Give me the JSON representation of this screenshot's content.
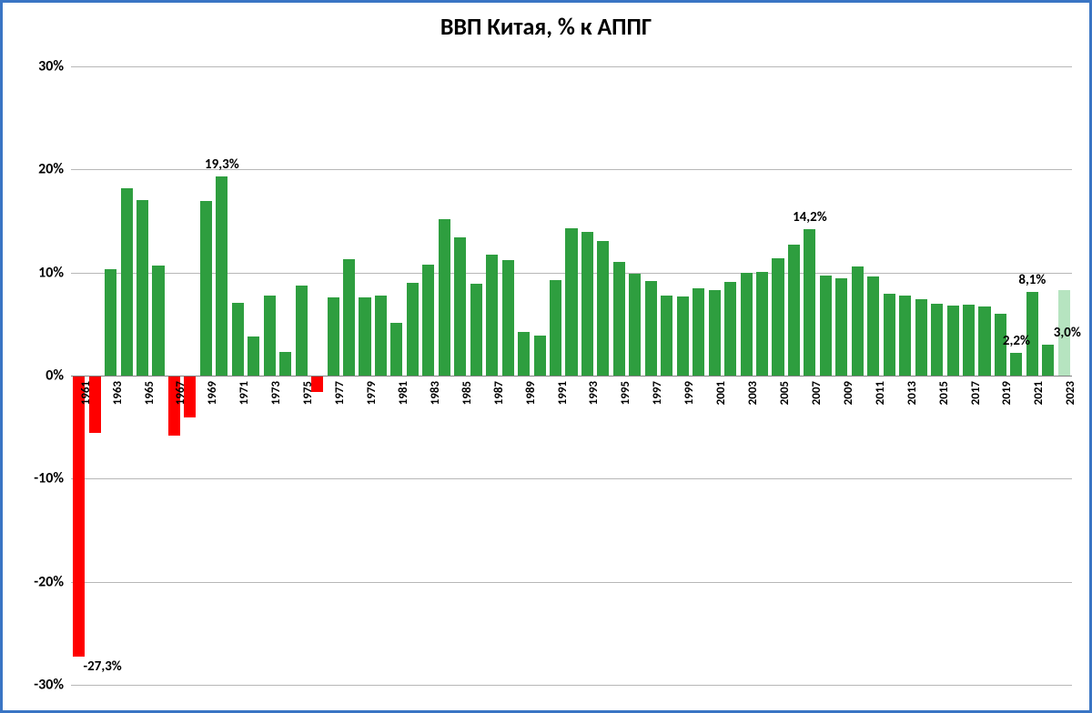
{
  "chart": {
    "type": "bar",
    "title": "ВВП Китая, % к АППГ",
    "title_fontsize": 26,
    "title_color": "#000000",
    "frame_border_color": "#3a75c4",
    "background_color": "#ffffff",
    "gridline_color": "#b7b7b7",
    "axis_color": "#7f7f7f",
    "ylim": [
      -30,
      30
    ],
    "ytick_step": 10,
    "yticks": [
      "-30%",
      "-20%",
      "-10%",
      "0%",
      "10%",
      "20%",
      "30%"
    ],
    "ylabel_fontsize": 16,
    "xlabel_fontsize": 13,
    "xlabel_rotation": -90,
    "bar_gap_ratio": 0.25,
    "positive_color": "#2e9e3f",
    "negative_color": "#ff0000",
    "forecast_color": "#b6e4c0",
    "years": [
      1961,
      1962,
      1963,
      1964,
      1965,
      1966,
      1967,
      1968,
      1969,
      1970,
      1971,
      1972,
      1973,
      1974,
      1975,
      1976,
      1977,
      1978,
      1979,
      1980,
      1981,
      1982,
      1983,
      1984,
      1985,
      1986,
      1987,
      1988,
      1989,
      1990,
      1991,
      1992,
      1993,
      1994,
      1995,
      1996,
      1997,
      1998,
      1999,
      2000,
      2001,
      2002,
      2003,
      2004,
      2005,
      2006,
      2007,
      2008,
      2009,
      2010,
      2011,
      2012,
      2013,
      2014,
      2015,
      2016,
      2017,
      2018,
      2019,
      2020,
      2021,
      2022,
      2023
    ],
    "values": [
      -27.3,
      -5.6,
      10.3,
      18.2,
      17.0,
      10.7,
      -5.8,
      -4.1,
      16.9,
      19.3,
      7.1,
      3.8,
      7.8,
      2.3,
      8.7,
      -1.6,
      7.6,
      11.3,
      7.6,
      7.8,
      5.1,
      9.0,
      10.8,
      15.2,
      13.4,
      8.9,
      11.7,
      11.2,
      4.2,
      3.9,
      9.3,
      14.3,
      13.9,
      13.1,
      11.0,
      9.9,
      9.2,
      7.8,
      7.7,
      8.5,
      8.3,
      9.1,
      10.0,
      10.1,
      11.4,
      12.7,
      14.2,
      9.7,
      9.4,
      10.6,
      9.6,
      7.9,
      7.8,
      7.4,
      7.0,
      6.8,
      6.9,
      6.7,
      6.0,
      2.2,
      8.1,
      3.0,
      8.3
    ],
    "forecast_index": 62,
    "xlabel_step": 2,
    "data_labels": [
      {
        "year": 1961,
        "text": "-27,3%",
        "value": -27.3,
        "offset": "below"
      },
      {
        "year": 1970,
        "text": "19,3%",
        "value": 19.3,
        "offset": "above"
      },
      {
        "year": 2007,
        "text": "14,2%",
        "value": 14.2,
        "offset": "above"
      },
      {
        "year": 2020,
        "text": "2,2%",
        "value": 2.2,
        "offset": "above"
      },
      {
        "year": 2021,
        "text": "8,1%",
        "value": 8.1,
        "offset": "above"
      },
      {
        "year": 2022,
        "text": "3,0%",
        "value": 3.0,
        "offset": "above-right"
      }
    ],
    "data_label_fontsize": 15
  }
}
